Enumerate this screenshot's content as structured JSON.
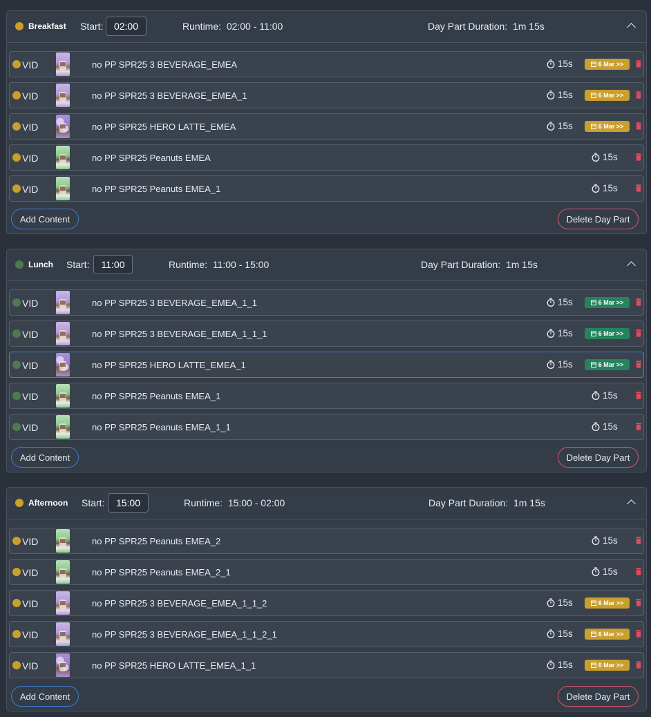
{
  "colors": {
    "gold": "#c9a02d",
    "green": "#4e7a52",
    "badge_gold": "#c9a02d",
    "badge_green": "#25845e",
    "trash": "#e04a5f"
  },
  "labels": {
    "start": "Start:",
    "runtime_label": "Runtime:",
    "duration_label": "Day Part Duration:",
    "add_content": "Add Content",
    "delete_day_part": "Delete Day Part",
    "vid": "VID"
  },
  "icons": {
    "collapse": "chevron-up-icon",
    "timer": "stopwatch-icon",
    "schedule": "calendar-icon",
    "delete": "trash-icon"
  },
  "dayparts": [
    {
      "name": "Breakfast",
      "dot_color": "#c9a02d",
      "start": "02:00",
      "runtime": "02:00 - 11:00",
      "duration": "1m 15s",
      "items": [
        {
          "title": "no PP SPR25 3 BEVERAGE_EMEA",
          "thumb": "purple",
          "duration": "15s",
          "badge": "6 Mar >>"
        },
        {
          "title": "no PP SPR25 3 BEVERAGE_EMEA_1",
          "thumb": "purple",
          "duration": "15s",
          "badge": "6 Mar >>"
        },
        {
          "title": "no PP SPR25 HERO LATTE_EMEA",
          "thumb": "lilac",
          "duration": "15s",
          "badge": "6 Mar >>"
        },
        {
          "title": "no PP SPR25 Peanuts EMEA",
          "thumb": "green",
          "duration": "15s",
          "badge": ""
        },
        {
          "title": "no PP SPR25 Peanuts EMEA_1",
          "thumb": "green",
          "duration": "15s",
          "badge": ""
        }
      ]
    },
    {
      "name": "Lunch",
      "dot_color": "#4e7a52",
      "start": "11:00",
      "runtime": "11:00 - 15:00",
      "duration": "1m 15s",
      "items": [
        {
          "title": "no PP SPR25 3 BEVERAGE_EMEA_1_1",
          "thumb": "purple",
          "duration": "15s",
          "badge": "6 Mar >>"
        },
        {
          "title": "no PP SPR25 3 BEVERAGE_EMEA_1_1_1",
          "thumb": "purple",
          "duration": "15s",
          "badge": "6 Mar >>"
        },
        {
          "title": "no PP SPR25 HERO LATTE_EMEA_1",
          "thumb": "lilac",
          "duration": "15s",
          "badge": "6 Mar >>"
        },
        {
          "title": "no PP SPR25 Peanuts EMEA_1",
          "thumb": "green",
          "duration": "15s",
          "badge": ""
        },
        {
          "title": "no PP SPR25 Peanuts EMEA_1_1",
          "thumb": "green",
          "duration": "15s",
          "badge": ""
        }
      ]
    },
    {
      "name": "Afternoon",
      "dot_color": "#c9a02d",
      "start": "15:00",
      "runtime": "15:00 - 02:00",
      "duration": "1m 15s",
      "items": [
        {
          "title": "no PP SPR25 Peanuts EMEA_2",
          "thumb": "green",
          "duration": "15s",
          "badge": ""
        },
        {
          "title": "no PP SPR25 Peanuts EMEA_2_1",
          "thumb": "green",
          "duration": "15s",
          "badge": ""
        },
        {
          "title": "no PP SPR25 3 BEVERAGE_EMEA_1_1_2",
          "thumb": "purple",
          "duration": "15s",
          "badge": "6 Mar >>"
        },
        {
          "title": "no PP SPR25 3 BEVERAGE_EMEA_1_1_2_1",
          "thumb": "purple",
          "duration": "15s",
          "badge": "6 Mar >>"
        },
        {
          "title": "no PP SPR25 HERO LATTE_EMEA_1_1",
          "thumb": "lilac",
          "duration": "15s",
          "badge": "6 Mar >>"
        }
      ]
    }
  ]
}
